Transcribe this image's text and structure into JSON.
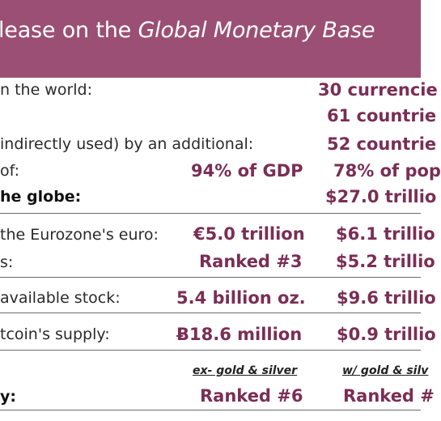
{
  "header": {
    "title_prefix": "lease on the ",
    "title_emphasis": "Global Monetary Base"
  },
  "rows": {
    "r1": {
      "label": "n the world:",
      "col2": "",
      "col3": "30 currencie"
    },
    "r2": {
      "label": "",
      "col2": "",
      "col3": "61 countrie"
    },
    "r3": {
      "label": "indirectly used) by an additional:",
      "col2": "",
      "col3": "52 countrie"
    },
    "r4": {
      "label": " of:",
      "col2": "94% of GDP",
      "col3": "78% of pop"
    },
    "r5": {
      "label": "he globe:",
      "col2": "",
      "col3": "$27.0 trillio"
    },
    "r6": {
      "label": "the Eurozone's euro:",
      "col2": "€5.0 trillion",
      "col3": "$6.1 trillio"
    },
    "r7": {
      "label": "s:",
      "col2": "Ranked #3",
      "col3": "$5.2 trillio"
    },
    "r8": {
      "label": "available stock:",
      "col2": "5.4 billion oz.",
      "col3": "$9.6 trillio"
    },
    "r9": {
      "label": "tcoin's supply:",
      "col2": "Ƀ18.6 million",
      "col3": "$0.9 trillio"
    },
    "r10": {
      "label": "y:",
      "col2": "Ranked #6",
      "col3": "Ranked #"
    }
  },
  "subheaders": {
    "col2": "ex- gold & silver",
    "col3": "w/ gold & silv"
  },
  "colors": {
    "banner": "#9b4f74",
    "value_text": "#7a2e55",
    "rule": "#6b6b6b"
  }
}
